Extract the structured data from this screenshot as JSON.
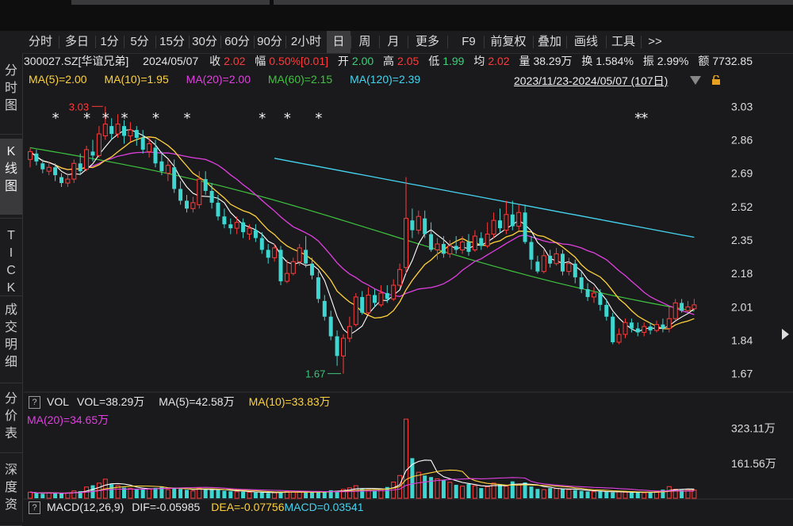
{
  "periods": [
    "分时",
    "多日",
    "1分",
    "5分",
    "15分",
    "30分",
    "60分",
    "90分",
    "2小时",
    "日",
    "周",
    "月",
    "更多",
    "F9",
    "前复权",
    "叠加",
    "画线",
    "工具",
    ">>"
  ],
  "active_period": "日",
  "sidebar": [
    "分\n时\n图",
    "K\n线\n图",
    "T\nI\nC\nK",
    "成\n交\n明\n细",
    "分\n价\n表",
    "深\n度\n资"
  ],
  "active_sidebar": 1,
  "info": {
    "code": "300027.SZ[华谊兄弟]",
    "date": "2024/05/07",
    "close_label": "收",
    "close": "2.02",
    "chg_label": "幅",
    "chg": "0.50%[0.01]",
    "open_label": "开",
    "open": "2.00",
    "high_label": "高",
    "high": "2.05",
    "low_label": "低",
    "low": "1.99",
    "avg_label": "均",
    "avg": "2.02",
    "vol_label": "量",
    "vol": "38.29万",
    "turn_label": "换",
    "turn": "1.584%",
    "amp_label": "振",
    "amp": "2.99%",
    "amt_label": "额",
    "amt": "7732.85"
  },
  "ma_legend": {
    "ma5": "MA(5)=2.00",
    "ma10": "MA(10)=1.95",
    "ma20": "MA(20)=2.00",
    "ma60": "MA(60)=2.15",
    "ma120": "MA(120)=2.39"
  },
  "date_range": "2023/11/23-2024/05/07 (107日)",
  "vol_legend": {
    "help": "?",
    "name": "VOL",
    "vol": "VOL=38.29万",
    "ma5": "MA(5)=42.58万",
    "ma10": "MA(10)=33.83万",
    "ma20": "MA(20)=34.65万"
  },
  "macd_legend": {
    "help": "?",
    "name": "MACD(12,26,9)",
    "dif": "DIF=-0.05985",
    "dea": "DEA=-0.07756",
    "macd": "MACD=0.03541"
  },
  "colors": {
    "up": "#ff3b3b",
    "down": "#3dd6d0",
    "ma5": "#ffffff",
    "ma10": "#ffd23c",
    "ma20": "#e040e0",
    "ma60": "#3ec43e",
    "ma120": "#45d4f0",
    "bg": "#1a1a1c"
  },
  "chart_data": {
    "type": "candlestick",
    "ylim": [
      1.58,
      3.12
    ],
    "price_ticks": [
      "3.03",
      "2.86",
      "2.69",
      "2.52",
      "2.35",
      "2.18",
      "2.01",
      "1.84",
      "1.67"
    ],
    "max_label": "3.03",
    "min_label": "1.67",
    "vol_ticks": [
      "323.11万",
      "161.56万"
    ],
    "vol_max": 380,
    "candles": [
      [
        2.76,
        2.8,
        2.82,
        2.72
      ],
      [
        2.79,
        2.75,
        2.81,
        2.73
      ],
      [
        2.74,
        2.71,
        2.76,
        2.69
      ],
      [
        2.7,
        2.72,
        2.75,
        2.68
      ],
      [
        2.72,
        2.68,
        2.74,
        2.65
      ],
      [
        2.67,
        2.64,
        2.69,
        2.62
      ],
      [
        2.64,
        2.66,
        2.69,
        2.62
      ],
      [
        2.66,
        2.74,
        2.76,
        2.64
      ],
      [
        2.74,
        2.7,
        2.79,
        2.68
      ],
      [
        2.71,
        2.81,
        2.83,
        2.7
      ],
      [
        2.8,
        2.78,
        2.86,
        2.75
      ],
      [
        2.78,
        2.89,
        2.93,
        2.77
      ],
      [
        2.88,
        2.94,
        3.03,
        2.86
      ],
      [
        2.93,
        2.89,
        2.97,
        2.86
      ],
      [
        2.89,
        2.94,
        2.99,
        2.87
      ],
      [
        2.93,
        2.88,
        2.96,
        2.84
      ],
      [
        2.88,
        2.91,
        2.95,
        2.85
      ],
      [
        2.91,
        2.87,
        2.93,
        2.83
      ],
      [
        2.87,
        2.81,
        2.91,
        2.79
      ],
      [
        2.8,
        2.84,
        2.87,
        2.77
      ],
      [
        2.82,
        2.74,
        2.86,
        2.72
      ],
      [
        2.75,
        2.7,
        2.8,
        2.68
      ],
      [
        2.69,
        2.73,
        2.76,
        2.65
      ],
      [
        2.72,
        2.61,
        2.76,
        2.59
      ],
      [
        2.61,
        2.55,
        2.65,
        2.53
      ],
      [
        2.55,
        2.51,
        2.58,
        2.49
      ],
      [
        2.51,
        2.54,
        2.57,
        2.49
      ],
      [
        2.53,
        2.66,
        2.7,
        2.51
      ],
      [
        2.66,
        2.6,
        2.7,
        2.58
      ],
      [
        2.6,
        2.54,
        2.64,
        2.51
      ],
      [
        2.54,
        2.47,
        2.58,
        2.45
      ],
      [
        2.47,
        2.43,
        2.51,
        2.41
      ],
      [
        2.43,
        2.41,
        2.46,
        2.38
      ],
      [
        2.41,
        2.44,
        2.47,
        2.38
      ],
      [
        2.44,
        2.39,
        2.46,
        2.36
      ],
      [
        2.38,
        2.41,
        2.43,
        2.35
      ],
      [
        2.4,
        2.36,
        2.43,
        2.34
      ],
      [
        2.36,
        2.3,
        2.39,
        2.28
      ],
      [
        2.3,
        2.26,
        2.33,
        2.23
      ],
      [
        2.26,
        2.31,
        2.33,
        2.24
      ],
      [
        2.3,
        2.14,
        2.32,
        2.12
      ],
      [
        2.14,
        2.18,
        2.25,
        2.13
      ],
      [
        2.18,
        2.24,
        2.26,
        2.17
      ],
      [
        2.24,
        2.31,
        2.33,
        2.22
      ],
      [
        2.3,
        2.23,
        2.37,
        2.21
      ],
      [
        2.23,
        2.17,
        2.26,
        2.15
      ],
      [
        2.16,
        2.05,
        2.19,
        2.03
      ],
      [
        2.04,
        1.96,
        2.07,
        1.94
      ],
      [
        1.96,
        1.86,
        1.99,
        1.84
      ],
      [
        1.86,
        1.76,
        1.89,
        1.71
      ],
      [
        1.76,
        1.85,
        1.87,
        1.67
      ],
      [
        1.85,
        1.91,
        1.96,
        1.83
      ],
      [
        1.92,
        2.06,
        2.08,
        1.91
      ],
      [
        2.06,
        1.98,
        2.09,
        1.97
      ],
      [
        1.98,
        2.07,
        2.11,
        1.97
      ],
      [
        2.07,
        2.03,
        2.1,
        2.01
      ],
      [
        2.02,
        2.08,
        2.12,
        2.01
      ],
      [
        2.08,
        2.05,
        2.12,
        2.03
      ],
      [
        2.05,
        2.12,
        2.15,
        2.04
      ],
      [
        2.12,
        2.2,
        2.23,
        2.11
      ],
      [
        2.21,
        2.46,
        2.67,
        2.18
      ],
      [
        2.45,
        2.4,
        2.51,
        2.36
      ],
      [
        2.4,
        2.47,
        2.5,
        2.38
      ],
      [
        2.46,
        2.38,
        2.5,
        2.36
      ],
      [
        2.38,
        2.3,
        2.44,
        2.29
      ],
      [
        2.3,
        2.33,
        2.36,
        2.25
      ],
      [
        2.33,
        2.28,
        2.37,
        2.26
      ],
      [
        2.28,
        2.32,
        2.35,
        2.26
      ],
      [
        2.32,
        2.3,
        2.37,
        2.28
      ],
      [
        2.3,
        2.34,
        2.37,
        2.28
      ],
      [
        2.34,
        2.29,
        2.38,
        2.27
      ],
      [
        2.3,
        2.37,
        2.4,
        2.29
      ],
      [
        2.36,
        2.32,
        2.39,
        2.3
      ],
      [
        2.32,
        2.38,
        2.44,
        2.31
      ],
      [
        2.38,
        2.45,
        2.49,
        2.36
      ],
      [
        2.45,
        2.41,
        2.51,
        2.39
      ],
      [
        2.4,
        2.48,
        2.55,
        2.38
      ],
      [
        2.48,
        2.42,
        2.55,
        2.4
      ],
      [
        2.42,
        2.49,
        2.53,
        2.4
      ],
      [
        2.49,
        2.34,
        2.53,
        2.33
      ],
      [
        2.34,
        2.25,
        2.37,
        2.2
      ],
      [
        2.24,
        2.19,
        2.27,
        2.18
      ],
      [
        2.19,
        2.27,
        2.3,
        2.18
      ],
      [
        2.27,
        2.23,
        2.3,
        2.21
      ],
      [
        2.23,
        2.28,
        2.31,
        2.22
      ],
      [
        2.28,
        2.19,
        2.3,
        2.17
      ],
      [
        2.19,
        2.23,
        2.26,
        2.17
      ],
      [
        2.23,
        2.16,
        2.25,
        2.13
      ],
      [
        2.16,
        2.1,
        2.19,
        2.08
      ],
      [
        2.1,
        2.06,
        2.13,
        2.04
      ],
      [
        2.06,
        2.08,
        2.11,
        2.03
      ],
      [
        2.08,
        2.02,
        2.1,
        1.99
      ],
      [
        2.02,
        1.96,
        2.05,
        1.94
      ],
      [
        1.96,
        1.83,
        1.98,
        1.82
      ],
      [
        1.83,
        1.87,
        1.9,
        1.82
      ],
      [
        1.87,
        1.93,
        1.95,
        1.85
      ],
      [
        1.93,
        1.9,
        1.95,
        1.88
      ],
      [
        1.9,
        1.88,
        1.93,
        1.86
      ],
      [
        1.88,
        1.91,
        1.93,
        1.86
      ],
      [
        1.91,
        1.89,
        1.93,
        1.87
      ],
      [
        1.89,
        1.92,
        1.94,
        1.88
      ],
      [
        1.92,
        1.9,
        1.95,
        1.88
      ],
      [
        1.9,
        1.95,
        2.01,
        1.88
      ],
      [
        1.95,
        2.03,
        2.05,
        1.94
      ],
      [
        2.03,
        1.99,
        2.05,
        1.98
      ],
      [
        1.99,
        2.01,
        2.04,
        1.98
      ],
      [
        2.0,
        2.02,
        2.05,
        1.99
      ]
    ],
    "volume": [
      28,
      24,
      21,
      26,
      23,
      22,
      25,
      34,
      33,
      52,
      60,
      70,
      88,
      64,
      58,
      49,
      45,
      42,
      40,
      44,
      48,
      55,
      40,
      46,
      43,
      39,
      34,
      48,
      42,
      40,
      38,
      35,
      32,
      30,
      30,
      28,
      27,
      26,
      24,
      26,
      31,
      33,
      30,
      28,
      27,
      29,
      30,
      32,
      37,
      34,
      41,
      48,
      58,
      43,
      39,
      36,
      41,
      52,
      75,
      105,
      365,
      185,
      120,
      105,
      98,
      90,
      84,
      74,
      62,
      56,
      66,
      58,
      47,
      53,
      70,
      64,
      56,
      78,
      61,
      73,
      54,
      43,
      40,
      47,
      45,
      42,
      40,
      38,
      34,
      31,
      30,
      32,
      29,
      27,
      31,
      28,
      26,
      27,
      25,
      29,
      31,
      40,
      54,
      42,
      38,
      40,
      38
    ],
    "star_columns": [
      4,
      9,
      12,
      15,
      20,
      25,
      37,
      41,
      46,
      97,
      98
    ]
  }
}
